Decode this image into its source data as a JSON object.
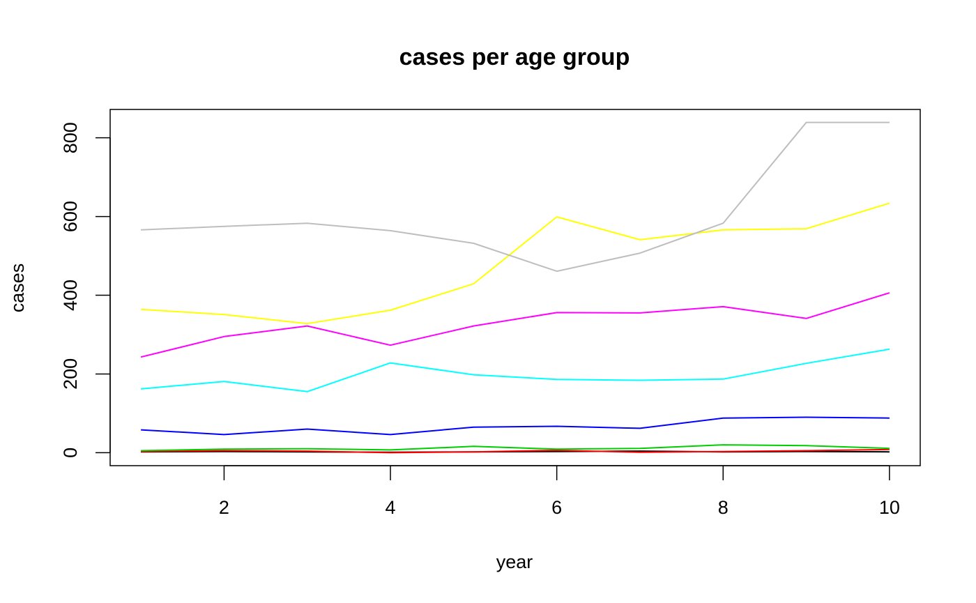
{
  "chart_data": {
    "type": "line",
    "title": "cases per age group",
    "xlabel": "year",
    "ylabel": "cases",
    "xlim": [
      0.63,
      10.37
    ],
    "ylim": [
      -33,
      872
    ],
    "x_ticks": [
      2,
      4,
      6,
      8,
      10
    ],
    "y_ticks": [
      0,
      200,
      400,
      600,
      800
    ],
    "grid": false,
    "legend": "none",
    "x": [
      1,
      2,
      3,
      4,
      5,
      6,
      7,
      8,
      9,
      10
    ],
    "series": [
      {
        "color": "#000000",
        "values": [
          2,
          3,
          2,
          1,
          2,
          3,
          4,
          2,
          3,
          2
        ]
      },
      {
        "color": "#FF0000",
        "values": [
          3,
          5,
          4,
          0,
          2,
          6,
          1,
          3,
          5,
          8
        ]
      },
      {
        "color": "#00CD00",
        "values": [
          5,
          9,
          10,
          7,
          16,
          9,
          11,
          20,
          18,
          11
        ]
      },
      {
        "color": "#0000FF",
        "values": [
          58,
          46,
          60,
          46,
          65,
          67,
          62,
          88,
          90,
          88
        ]
      },
      {
        "color": "#00FFFF",
        "values": [
          162,
          181,
          155,
          228,
          198,
          186,
          184,
          187,
          227,
          263
        ]
      },
      {
        "color": "#FF00FF",
        "values": [
          243,
          295,
          322,
          273,
          322,
          356,
          355,
          371,
          341,
          406
        ]
      },
      {
        "color": "#FFFF00",
        "values": [
          364,
          351,
          328,
          362,
          429,
          599,
          541,
          566,
          569,
          634
        ]
      },
      {
        "color": "#BEBEBE",
        "values": [
          566,
          575,
          583,
          564,
          532,
          461,
          507,
          583,
          839,
          839
        ]
      }
    ]
  }
}
